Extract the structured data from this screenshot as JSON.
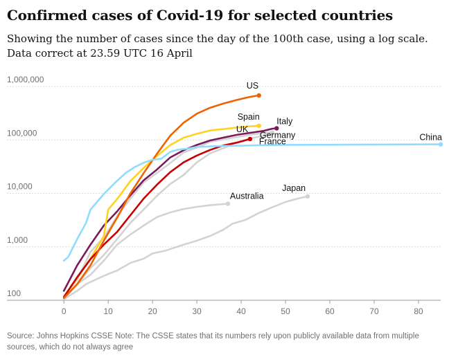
{
  "title": "Confirmed cases of Covid-19 for selected countries",
  "subtitle_line1": "Showing the number of cases since the day of the 100th case, using a log scale.",
  "subtitle_line2": "Data correct at 23.59 UTC 16 April",
  "source": "Source: Johns Hopkins CSSE Note: The CSSE states that its numbers rely upon publicly available data from multiple sources, which do not always agree",
  "chart_data": {
    "type": "line",
    "title": "Confirmed cases of Covid-19 for selected countries",
    "xlabel": "",
    "ylabel": "",
    "xlim": [
      -3,
      85
    ],
    "ylim": [
      100,
      1000000
    ],
    "yscale": "log",
    "x_ticks": [
      0,
      10,
      20,
      30,
      40,
      50,
      60,
      70,
      80
    ],
    "y_ticks": [
      {
        "value": 100,
        "label": "100"
      },
      {
        "value": 1000,
        "label": "1,000"
      },
      {
        "value": 10000,
        "label": "10,000"
      },
      {
        "value": 100000,
        "label": "100,000"
      },
      {
        "value": 1000000,
        "label": "1,000,000"
      }
    ],
    "grid": true,
    "series": [
      {
        "name": "Japan",
        "color": "#d3d3d3",
        "points": [
          [
            0,
            105
          ],
          [
            3,
            150
          ],
          [
            5,
            200
          ],
          [
            7,
            240
          ],
          [
            10,
            310
          ],
          [
            12,
            360
          ],
          [
            15,
            500
          ],
          [
            18,
            600
          ],
          [
            20,
            750
          ],
          [
            23,
            850
          ],
          [
            27,
            1100
          ],
          [
            30,
            1300
          ],
          [
            33,
            1600
          ],
          [
            36,
            2100
          ],
          [
            38,
            2700
          ],
          [
            41,
            3200
          ],
          [
            44,
            4300
          ],
          [
            47,
            5500
          ],
          [
            50,
            6900
          ],
          [
            53,
            8100
          ],
          [
            55,
            8800
          ]
        ]
      },
      {
        "name": "Australia",
        "color": "#d3d3d3",
        "points": [
          [
            0,
            105
          ],
          [
            3,
            200
          ],
          [
            6,
            300
          ],
          [
            9,
            550
          ],
          [
            12,
            1100
          ],
          [
            15,
            1700
          ],
          [
            18,
            2500
          ],
          [
            21,
            3600
          ],
          [
            24,
            4400
          ],
          [
            27,
            5100
          ],
          [
            30,
            5600
          ],
          [
            33,
            6000
          ],
          [
            36,
            6300
          ],
          [
            37,
            6400
          ]
        ]
      },
      {
        "name": "France",
        "color": "#d3d3d3",
        "points": [
          [
            0,
            110
          ],
          [
            3,
            200
          ],
          [
            6,
            400
          ],
          [
            9,
            700
          ],
          [
            12,
            1400
          ],
          [
            15,
            2800
          ],
          [
            18,
            5000
          ],
          [
            21,
            9000
          ],
          [
            24,
            15000
          ],
          [
            27,
            22000
          ],
          [
            30,
            38000
          ],
          [
            33,
            56000
          ],
          [
            36,
            70000
          ],
          [
            39,
            90000
          ],
          [
            42,
            106000
          ],
          [
            45,
            120000
          ],
          [
            47,
            133000
          ]
        ]
      },
      {
        "name": "Germany",
        "color": "#d3d3d3",
        "points": [
          [
            0,
            120
          ],
          [
            3,
            240
          ],
          [
            6,
            800
          ],
          [
            9,
            1500
          ],
          [
            12,
            3700
          ],
          [
            15,
            8000
          ],
          [
            18,
            16000
          ],
          [
            21,
            24000
          ],
          [
            24,
            37000
          ],
          [
            27,
            58000
          ],
          [
            30,
            72000
          ],
          [
            33,
            92000
          ],
          [
            36,
            103000
          ],
          [
            39,
            113000
          ],
          [
            42,
            125000
          ],
          [
            45,
            135000
          ],
          [
            47,
            138000
          ]
        ]
      },
      {
        "name": "Italy",
        "color": "#7b1a5a",
        "points": [
          [
            0,
            150
          ],
          [
            3,
            450
          ],
          [
            6,
            1100
          ],
          [
            9,
            2500
          ],
          [
            12,
            4600
          ],
          [
            15,
            9200
          ],
          [
            18,
            17600
          ],
          [
            21,
            27900
          ],
          [
            24,
            47000
          ],
          [
            27,
            64000
          ],
          [
            30,
            80500
          ],
          [
            33,
            97700
          ],
          [
            36,
            110500
          ],
          [
            39,
            124600
          ],
          [
            42,
            135600
          ],
          [
            45,
            147600
          ],
          [
            47,
            162500
          ],
          [
            48,
            165000
          ]
        ]
      },
      {
        "name": "Spain",
        "color": "#ffd21f",
        "points": [
          [
            0,
            115
          ],
          [
            3,
            260
          ],
          [
            6,
            600
          ],
          [
            9,
            1600
          ],
          [
            10,
            5000
          ],
          [
            12,
            7800
          ],
          [
            15,
            17000
          ],
          [
            18,
            30000
          ],
          [
            21,
            50000
          ],
          [
            24,
            80000
          ],
          [
            27,
            110000
          ],
          [
            30,
            130000
          ],
          [
            33,
            150000
          ],
          [
            36,
            160000
          ],
          [
            39,
            170000
          ],
          [
            42,
            180000
          ],
          [
            44,
            184000
          ]
        ]
      },
      {
        "name": "UK",
        "color": "#c70000",
        "points": [
          [
            0,
            115
          ],
          [
            3,
            270
          ],
          [
            6,
            590
          ],
          [
            9,
            1100
          ],
          [
            12,
            1900
          ],
          [
            15,
            3900
          ],
          [
            18,
            8000
          ],
          [
            21,
            14500
          ],
          [
            24,
            25000
          ],
          [
            27,
            38000
          ],
          [
            30,
            51000
          ],
          [
            33,
            65000
          ],
          [
            36,
            79000
          ],
          [
            39,
            89000
          ],
          [
            42,
            104000
          ]
        ]
      },
      {
        "name": "US",
        "color": "#ed6300",
        "points": [
          [
            0,
            110
          ],
          [
            3,
            200
          ],
          [
            6,
            450
          ],
          [
            9,
            1300
          ],
          [
            12,
            3500
          ],
          [
            15,
            10000
          ],
          [
            18,
            24000
          ],
          [
            21,
            55000
          ],
          [
            24,
            120000
          ],
          [
            27,
            210000
          ],
          [
            30,
            310000
          ],
          [
            33,
            400000
          ],
          [
            36,
            480000
          ],
          [
            39,
            560000
          ],
          [
            42,
            640000
          ],
          [
            44,
            680000
          ]
        ]
      },
      {
        "name": "China",
        "color": "#90dcff",
        "points": [
          [
            0,
            550
          ],
          [
            1,
            650
          ],
          [
            3,
            1400
          ],
          [
            5,
            2800
          ],
          [
            6,
            5000
          ],
          [
            7,
            6200
          ],
          [
            9,
            9700
          ],
          [
            10,
            11800
          ],
          [
            12,
            17200
          ],
          [
            14,
            24300
          ],
          [
            16,
            31100
          ],
          [
            18,
            37500
          ],
          [
            20,
            42600
          ],
          [
            22,
            44600
          ],
          [
            24,
            59800
          ],
          [
            26,
            66400
          ],
          [
            28,
            68500
          ],
          [
            30,
            74200
          ],
          [
            32,
            75100
          ],
          [
            35,
            76700
          ],
          [
            40,
            78000
          ],
          [
            45,
            79900
          ],
          [
            50,
            80900
          ],
          [
            55,
            81100
          ],
          [
            60,
            81300
          ],
          [
            65,
            81600
          ],
          [
            70,
            81900
          ],
          [
            75,
            82200
          ],
          [
            80,
            82500
          ],
          [
            85,
            82700
          ]
        ]
      }
    ],
    "labels": [
      {
        "text": "US",
        "series": "US"
      },
      {
        "text": "Spain",
        "series": "Spain"
      },
      {
        "text": "Italy",
        "series": "Italy"
      },
      {
        "text": "Germany",
        "series": "Germany"
      },
      {
        "text": "France",
        "series": "France"
      },
      {
        "text": "UK",
        "series": "UK"
      },
      {
        "text": "China",
        "series": "China"
      },
      {
        "text": "Australia",
        "series": "Australia"
      },
      {
        "text": "Japan",
        "series": "Japan"
      }
    ]
  }
}
